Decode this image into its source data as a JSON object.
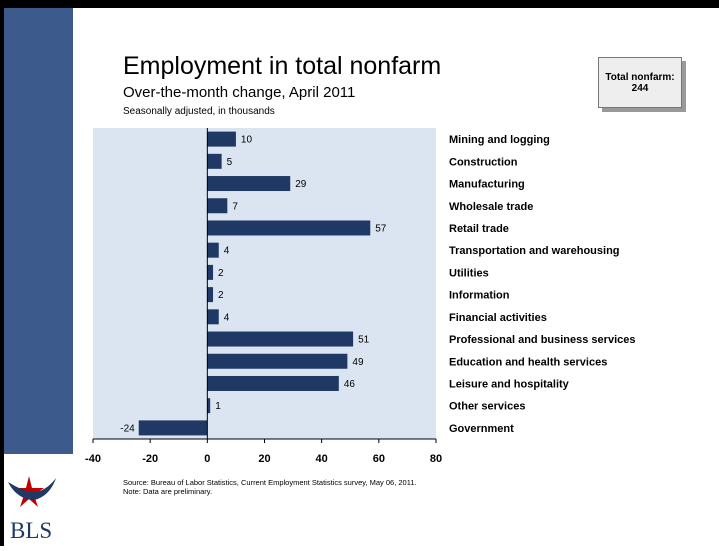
{
  "chart_data": {
    "type": "bar",
    "orientation": "horizontal",
    "title": "Employment in total nonfarm",
    "subtitle": "Over-the-month change, April 2011",
    "unit_note": "Seasonally adjusted, in thousands",
    "categories": [
      "Mining and logging",
      "Construction",
      "Manufacturing",
      "Wholesale trade",
      "Retail trade",
      "Transportation and warehousing",
      "Utilities",
      "Information",
      "Financial activities",
      "Professional and business services",
      "Education and health services",
      "Leisure and hospitality",
      "Other services",
      "Government"
    ],
    "values": [
      10,
      5,
      29,
      7,
      57,
      4,
      2,
      2,
      4,
      51,
      49,
      46,
      1,
      -24
    ],
    "xlim": [
      -40,
      80
    ],
    "x_ticks": [
      "-40",
      "-20",
      "0",
      "20",
      "40",
      "60",
      "80"
    ],
    "grid": false,
    "bar_color": "#1f3864",
    "plot_background": "#dbe5f1"
  },
  "total_box": {
    "label": "Total nonfarm:",
    "value": "244"
  },
  "source": {
    "line1": "Source: Bureau of Labor Statistics, Current Employment Statistics survey, May 06, 2011.",
    "line2": "Note: Data are preliminary."
  },
  "logo": {
    "text": "BLS",
    "icon": "star-eagle-icon"
  }
}
